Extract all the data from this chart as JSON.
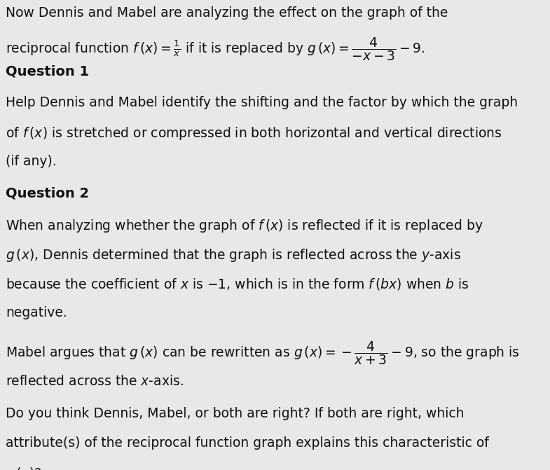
{
  "bg_color": "#e8e8e8",
  "text_color": "#111111",
  "body_fontsize": 13.5,
  "bold_fontsize": 14.0,
  "line1": "Now Dennis and Mabel are analyzing the effect on the graph of the",
  "line2": "reciprocal function $f\\,(x) = \\frac{1}{x}$ if it is replaced by $g\\,(x) = \\dfrac{4}{-x-3} - 9.$",
  "q1_label": "Question 1",
  "q1_line1": "Help Dennis and Mabel identify the shifting and the factor by which the graph",
  "q1_line2": "of $f\\,(x)$ is stretched or compressed in both horizontal and vertical directions",
  "q1_line3": "(if any).",
  "q2_label": "Question 2",
  "q2_line1": "When analyzing whether the graph of $f\\,(x)$ is reflected if it is replaced by",
  "q2_line2": "$g\\,(x)$, Dennis determined that the graph is reflected across the $y$-axis",
  "q2_line3": "because the coefficient of $x$ is $-1$, which is in the form $f\\,(bx)$ when $b$ is",
  "q2_line4": "negative.",
  "q2_line5": "Mabel argues that $g\\,(x)$ can be rewritten as $g\\,(x) = -\\dfrac{4}{x+3} - 9$, so the graph is",
  "q2_line6": "reflected across the $x$-axis.",
  "q2_line7": "Do you think Dennis, Mabel, or both are right? If both are right, which",
  "q2_line8": "attribute(s) of the reciprocal function graph explains this characteristic of",
  "q2_line9": "$g\\,(x)$?"
}
